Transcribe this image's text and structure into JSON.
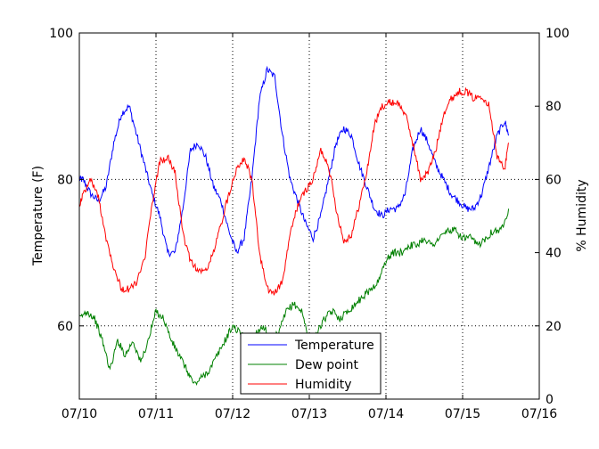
{
  "chart_data": {
    "type": "line",
    "xlabel": "",
    "ylabel": "Temperature (F)",
    "y2label": "% Humidity",
    "x_ticks": [
      "07/10",
      "07/11",
      "07/12",
      "07/13",
      "07/14",
      "07/15",
      "07/16"
    ],
    "xlim": [
      "07/10",
      "07/16"
    ],
    "ylim": [
      50,
      100
    ],
    "y_ticks": [
      60,
      80,
      100
    ],
    "y2lim": [
      0,
      100
    ],
    "y2_ticks": [
      0,
      20,
      40,
      60,
      80,
      100
    ],
    "grid": true,
    "legend_position": "bottom-center",
    "x_unit": "days after 07/10",
    "series": [
      {
        "name": "Temperature",
        "axis": "left",
        "color": "#0000ff",
        "x": [
          0.0,
          0.05,
          0.15,
          0.25,
          0.35,
          0.45,
          0.55,
          0.65,
          0.75,
          0.85,
          0.95,
          1.05,
          1.15,
          1.25,
          1.35,
          1.45,
          1.55,
          1.65,
          1.75,
          1.85,
          1.95,
          2.05,
          2.15,
          2.25,
          2.35,
          2.45,
          2.55,
          2.65,
          2.75,
          2.85,
          2.95,
          3.05,
          3.15,
          3.25,
          3.35,
          3.45,
          3.55,
          3.65,
          3.75,
          3.85,
          3.95,
          4.05,
          4.15,
          4.25,
          4.35,
          4.45,
          4.55,
          4.65,
          4.75,
          4.85,
          4.95,
          5.05,
          5.15,
          5.25,
          5.35,
          5.45,
          5.55,
          5.6
        ],
        "values": [
          80,
          80,
          78,
          77,
          79,
          85,
          89,
          90,
          86,
          82,
          78,
          75,
          70,
          70,
          76,
          84,
          85,
          83,
          79,
          77,
          73,
          70,
          72,
          80,
          91,
          95,
          94,
          86,
          80,
          77,
          74,
          72,
          75,
          80,
          85,
          87,
          86,
          82,
          79,
          76,
          75,
          76,
          76,
          78,
          84,
          87,
          85,
          82,
          80,
          78,
          77,
          76,
          76,
          78,
          82,
          86,
          88,
          86
        ],
        "lw": 1
      },
      {
        "name": "Dew point",
        "axis": "left",
        "color": "#008000",
        "x": [
          0.0,
          0.1,
          0.2,
          0.3,
          0.4,
          0.5,
          0.6,
          0.7,
          0.8,
          0.9,
          1.0,
          1.1,
          1.2,
          1.3,
          1.4,
          1.5,
          1.6,
          1.7,
          1.8,
          1.9,
          2.0,
          2.1,
          2.2,
          2.3,
          2.4,
          2.5,
          2.6,
          2.7,
          2.8,
          2.9,
          3.0,
          3.1,
          3.2,
          3.3,
          3.4,
          3.5,
          3.6,
          3.7,
          3.8,
          3.9,
          4.0,
          4.1,
          4.2,
          4.3,
          4.4,
          4.5,
          4.6,
          4.7,
          4.8,
          4.9,
          5.0,
          5.1,
          5.2,
          5.3,
          5.4,
          5.5,
          5.6
        ],
        "values": [
          61,
          62,
          61,
          58,
          54,
          58,
          56,
          58,
          55,
          58,
          62,
          61,
          58,
          56,
          54,
          52,
          53,
          54,
          56,
          58,
          60,
          59,
          58,
          59,
          60,
          58,
          59,
          62,
          63,
          62,
          58,
          59,
          61,
          62,
          61,
          62,
          63,
          64,
          65,
          66,
          69,
          70,
          70,
          71,
          71,
          72,
          71,
          72,
          73,
          73,
          72,
          72,
          71,
          72,
          73,
          73,
          76
        ],
        "lw": 1
      },
      {
        "name": "Humidity",
        "axis": "right",
        "color": "#ff0000",
        "x": [
          0.0,
          0.05,
          0.15,
          0.25,
          0.35,
          0.45,
          0.55,
          0.65,
          0.75,
          0.85,
          0.95,
          1.05,
          1.15,
          1.25,
          1.35,
          1.45,
          1.55,
          1.65,
          1.75,
          1.85,
          1.95,
          2.05,
          2.15,
          2.25,
          2.35,
          2.45,
          2.55,
          2.65,
          2.75,
          2.85,
          2.95,
          3.05,
          3.15,
          3.25,
          3.35,
          3.45,
          3.55,
          3.65,
          3.75,
          3.85,
          3.95,
          4.05,
          4.15,
          4.25,
          4.35,
          4.45,
          4.55,
          4.65,
          4.75,
          4.85,
          4.95,
          5.05,
          5.15,
          5.25,
          5.35,
          5.45,
          5.55,
          5.6
        ],
        "values": [
          53,
          56,
          60,
          55,
          44,
          36,
          30,
          30,
          32,
          38,
          53,
          65,
          66,
          62,
          45,
          38,
          35,
          35,
          40,
          48,
          56,
          63,
          66,
          60,
          40,
          30,
          29,
          32,
          45,
          53,
          57,
          60,
          68,
          64,
          52,
          43,
          45,
          53,
          62,
          75,
          80,
          81,
          81,
          78,
          70,
          60,
          62,
          68,
          78,
          82,
          84,
          84,
          82,
          83,
          80,
          66,
          63,
          70
        ]
      }
    ]
  }
}
